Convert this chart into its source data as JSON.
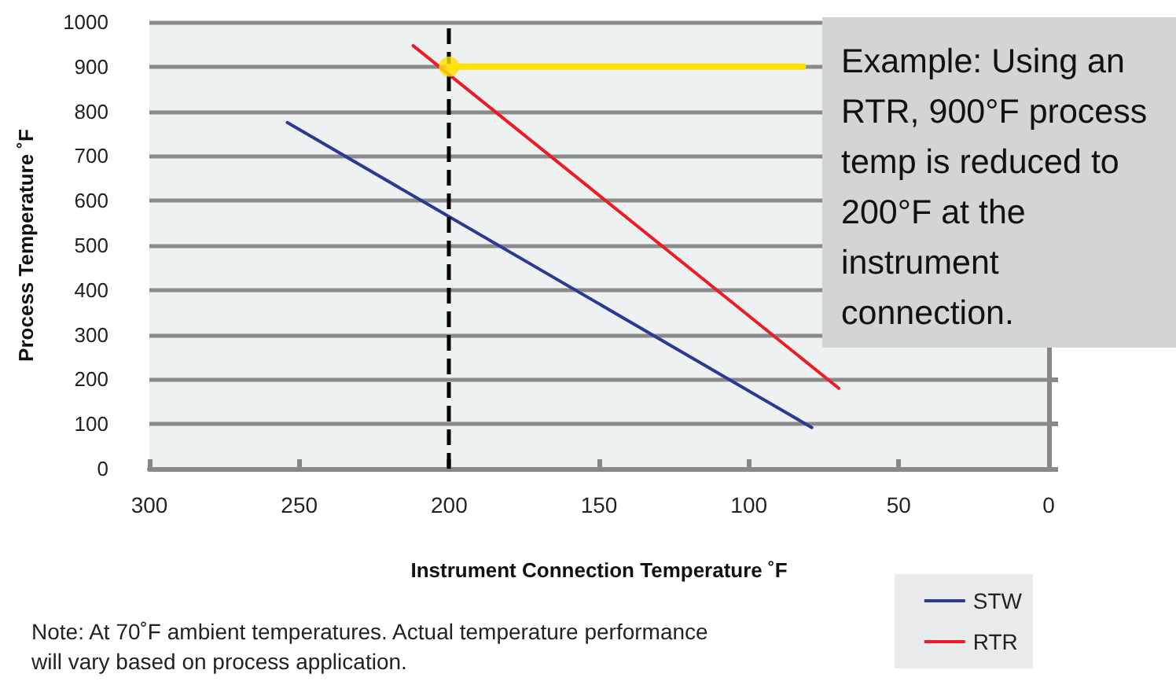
{
  "chart_data": {
    "type": "line",
    "xlabel": "Instrument Connection Temperature ˚F",
    "ylabel": "Process Temperature ˚F",
    "series": [
      {
        "name": "STW",
        "color": "#2b3990",
        "x": [
          254,
          79
        ],
        "values": [
          775,
          92
        ]
      },
      {
        "name": "RTR",
        "color": "#ed1c24",
        "x": [
          212,
          70
        ],
        "values": [
          947,
          180
        ]
      },
      {
        "color": "#ffe000",
        "x": [
          200,
          82
        ],
        "values": [
          900,
          900
        ]
      },
      {
        "type": "scatter",
        "color": "#ffe000",
        "x": [
          200
        ],
        "values": [
          900
        ],
        "marker": "circle"
      }
    ],
    "xlim": [
      300,
      0
    ],
    "xticks": [
      300,
      250,
      200,
      150,
      100,
      50,
      0
    ],
    "ylim": [
      0,
      1000
    ],
    "yticks": [
      0,
      100,
      200,
      300,
      400,
      500,
      600,
      700,
      800,
      900,
      1000
    ],
    "ref_lines": [
      {
        "axis": "x",
        "value": 200,
        "color": "#000000",
        "line_style": "dashed"
      }
    ],
    "annotations": [
      "Example: Using an RTR, 900°F process temp is reduced to 200°F at the instrument connection.",
      "Note: At 70˚F ambient temperatures. Actual temperature performance will vary based on process application."
    ],
    "grid": "y",
    "legend": "bottom right",
    "marker": "none",
    "line_style": "solid"
  }
}
